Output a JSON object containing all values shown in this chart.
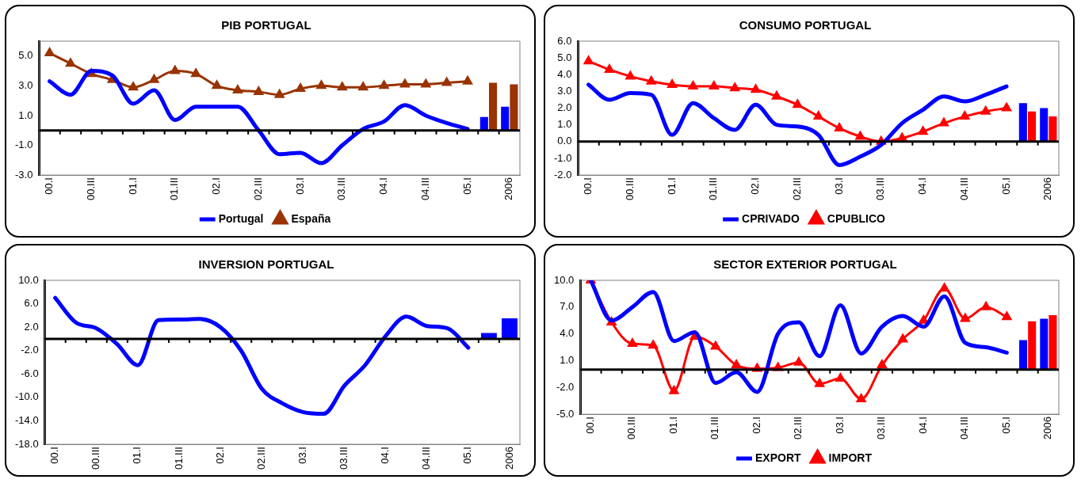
{
  "chart_data": [
    {
      "type": "line",
      "title": "PIB PORTUGAL",
      "categories": [
        "00.I",
        null,
        "00.III",
        null,
        "01.I",
        null,
        "01.III",
        null,
        "02.I",
        null,
        "02.III",
        null,
        "03.I",
        null,
        "03.III",
        null,
        "04.I",
        null,
        "04.III",
        null,
        "05.I",
        null,
        "2006"
      ],
      "series": [
        {
          "name": "Portugal",
          "color": "#0000ff",
          "marker": "none",
          "values": [
            3.3,
            2.4,
            4.0,
            3.7,
            1.8,
            2.7,
            0.7,
            1.6,
            1.6,
            1.6,
            0.0,
            -1.6,
            -1.5,
            -2.2,
            -1.0,
            0.1,
            0.6,
            1.7,
            1.0,
            0.5,
            0.1,
            null,
            null
          ]
        },
        {
          "name": "España",
          "color": "#993300",
          "marker": "triangle",
          "values": [
            5.2,
            4.5,
            3.8,
            3.4,
            2.9,
            3.4,
            4.0,
            3.8,
            3.0,
            2.7,
            2.6,
            2.4,
            2.8,
            3.0,
            2.9,
            2.9,
            3.0,
            3.1,
            3.1,
            3.2,
            3.3,
            null,
            null
          ]
        },
        {
          "type": "bar",
          "color": "#0000ff",
          "values": [
            null,
            null,
            null,
            null,
            null,
            null,
            null,
            null,
            null,
            null,
            null,
            null,
            null,
            null,
            null,
            null,
            null,
            null,
            null,
            null,
            null,
            0.9,
            1.6
          ]
        },
        {
          "type": "bar",
          "color": "#993300",
          "values": [
            null,
            null,
            null,
            null,
            null,
            null,
            null,
            null,
            null,
            null,
            null,
            null,
            null,
            null,
            null,
            null,
            null,
            null,
            null,
            null,
            null,
            3.2,
            3.1
          ]
        }
      ],
      "ylim": [
        -3,
        6
      ],
      "yticks": [
        {
          "value": -3,
          "label": "-3.0"
        },
        {
          "value": -1,
          "label": "-1.0"
        },
        {
          "value": 1,
          "label": "1.0"
        },
        {
          "value": 3,
          "label": "3.0"
        },
        {
          "value": 5,
          "label": "5.0"
        }
      ],
      "ref_lines": [
        {
          "axis": "y",
          "value": 0,
          "color": "#000000"
        }
      ],
      "grid": false,
      "legend": "bottom"
    },
    {
      "type": "line",
      "title": "CONSUMO PORTUGAL",
      "categories": [
        "00.I",
        null,
        "00.III",
        null,
        "01.I",
        null,
        "01.III",
        null,
        "02.I",
        null,
        "02.III",
        null,
        "03.I",
        null,
        "03.III",
        null,
        "04.I",
        null,
        "04.III",
        null,
        "05.I",
        null,
        "2006"
      ],
      "series": [
        {
          "name": "CPRIVADO",
          "color": "#0000ff",
          "marker": "none",
          "values": [
            3.4,
            2.5,
            2.9,
            2.8,
            0.4,
            2.3,
            1.4,
            0.7,
            2.2,
            1.0,
            0.9,
            0.4,
            -1.4,
            -0.9,
            -0.2,
            1.1,
            1.9,
            2.7,
            2.4,
            2.8,
            3.3,
            null,
            null
          ]
        },
        {
          "name": "CPUBLICO",
          "color": "#ff0000",
          "marker": "triangle",
          "values": [
            4.8,
            4.3,
            3.9,
            3.6,
            3.4,
            3.3,
            3.3,
            3.2,
            3.1,
            2.7,
            2.2,
            1.5,
            0.8,
            0.3,
            0.0,
            0.2,
            0.6,
            1.1,
            1.5,
            1.8,
            2.0,
            null,
            null
          ]
        },
        {
          "type": "bar",
          "color": "#0000ff",
          "values": [
            null,
            null,
            null,
            null,
            null,
            null,
            null,
            null,
            null,
            null,
            null,
            null,
            null,
            null,
            null,
            null,
            null,
            null,
            null,
            null,
            null,
            2.3,
            2.0
          ]
        },
        {
          "type": "bar",
          "color": "#ff0000",
          "values": [
            null,
            null,
            null,
            null,
            null,
            null,
            null,
            null,
            null,
            null,
            null,
            null,
            null,
            null,
            null,
            null,
            null,
            null,
            null,
            null,
            null,
            1.8,
            1.5
          ]
        }
      ],
      "ylim": [
        -2,
        6
      ],
      "yticks": [
        {
          "value": -2,
          "label": "-2.0"
        },
        {
          "value": -1,
          "label": "-1.0"
        },
        {
          "value": 0,
          "label": "0.0"
        },
        {
          "value": 1,
          "label": "1.0"
        },
        {
          "value": 2,
          "label": "2.0"
        },
        {
          "value": 3,
          "label": "3.0"
        },
        {
          "value": 4,
          "label": "4.0"
        },
        {
          "value": 5,
          "label": "5.0"
        },
        {
          "value": 6,
          "label": "6.0"
        }
      ],
      "ref_lines": [
        {
          "axis": "y",
          "value": 0,
          "color": "#000000"
        }
      ],
      "grid": false,
      "legend": "bottom"
    },
    {
      "type": "line",
      "title": "INVERSION PORTUGAL",
      "categories": [
        "00.I",
        null,
        "00.III",
        null,
        "01.I",
        null,
        "01.III",
        null,
        "02.I",
        null,
        "02.III",
        null,
        "03.I",
        null,
        "03.III",
        null,
        "04.I",
        null,
        "04.III",
        null,
        "05.I",
        null,
        "2006"
      ],
      "series": [
        {
          "color": "#0000ff",
          "marker": "none",
          "values": [
            7.0,
            2.8,
            1.8,
            -0.9,
            -4.5,
            3.2,
            3.3,
            3.4,
            2.0,
            -2.0,
            -8.5,
            -11.0,
            -12.5,
            -12.8,
            -8.0,
            -4.5,
            0.5,
            3.8,
            2.2,
            1.8,
            -1.5,
            null,
            null
          ]
        },
        {
          "type": "bar",
          "color": "#0000ff",
          "values": [
            null,
            null,
            null,
            null,
            null,
            null,
            null,
            null,
            null,
            null,
            null,
            null,
            null,
            null,
            null,
            null,
            null,
            null,
            null,
            null,
            null,
            1.0,
            3.5
          ]
        }
      ],
      "ylim": [
        -18,
        10
      ],
      "yticks": [
        {
          "value": -18,
          "label": "-18.0"
        },
        {
          "value": -14,
          "label": "-14.0"
        },
        {
          "value": -10,
          "label": "-10.0"
        },
        {
          "value": -6,
          "label": "-6.0"
        },
        {
          "value": -2,
          "label": "-2.0"
        },
        {
          "value": 2,
          "label": "2.0"
        },
        {
          "value": 6,
          "label": "6.0"
        },
        {
          "value": 10,
          "label": "10.0"
        }
      ],
      "ref_lines": [
        {
          "axis": "y",
          "value": 0,
          "color": "#000000"
        }
      ],
      "grid": false,
      "legend": false
    },
    {
      "type": "line",
      "title": "SECTOR EXTERIOR PORTUGAL",
      "categories": [
        "00.I",
        null,
        "00.III",
        null,
        "01.I",
        null,
        "01.III",
        null,
        "02.I",
        null,
        "02.III",
        null,
        "03.I",
        null,
        "03.III",
        null,
        "04.I",
        null,
        "04.III",
        null,
        "05.I",
        null,
        "2006"
      ],
      "series": [
        {
          "name": "EXPORT",
          "color": "#0000ff",
          "marker": "none",
          "values": [
            10.0,
            5.5,
            7.0,
            8.7,
            3.2,
            4.2,
            -1.5,
            -0.3,
            -2.5,
            4.0,
            5.3,
            1.5,
            7.2,
            1.8,
            4.8,
            6.0,
            4.8,
            8.2,
            3.0,
            2.5,
            1.9,
            null,
            null
          ]
        },
        {
          "name": "IMPORT",
          "color": "#ff0000",
          "marker": "triangle",
          "values": [
            10.0,
            5.3,
            2.9,
            2.7,
            -2.4,
            3.7,
            2.6,
            0.5,
            0.1,
            0.2,
            0.8,
            -1.6,
            -1.0,
            -3.3,
            0.5,
            3.4,
            5.5,
            9.1,
            5.7,
            7.0,
            5.9,
            null,
            null
          ]
        },
        {
          "type": "bar",
          "color": "#0000ff",
          "values": [
            null,
            null,
            null,
            null,
            null,
            null,
            null,
            null,
            null,
            null,
            null,
            null,
            null,
            null,
            null,
            null,
            null,
            null,
            null,
            null,
            null,
            3.3,
            5.7
          ]
        },
        {
          "type": "bar",
          "color": "#ff0000",
          "values": [
            null,
            null,
            null,
            null,
            null,
            null,
            null,
            null,
            null,
            null,
            null,
            null,
            null,
            null,
            null,
            null,
            null,
            null,
            null,
            null,
            null,
            5.4,
            6.1
          ]
        }
      ],
      "ylim": [
        -5,
        10
      ],
      "yticks": [
        {
          "value": -5,
          "label": "-5.0"
        },
        {
          "value": -2,
          "label": "-2.0"
        },
        {
          "value": 1,
          "label": "1.0"
        },
        {
          "value": 4,
          "label": "4.0"
        },
        {
          "value": 7,
          "label": "7.0"
        },
        {
          "value": 10,
          "label": "10.0"
        }
      ],
      "ref_lines": [
        {
          "axis": "y",
          "value": 0,
          "color": "#000000"
        }
      ],
      "grid": false,
      "legend": "bottom"
    }
  ]
}
